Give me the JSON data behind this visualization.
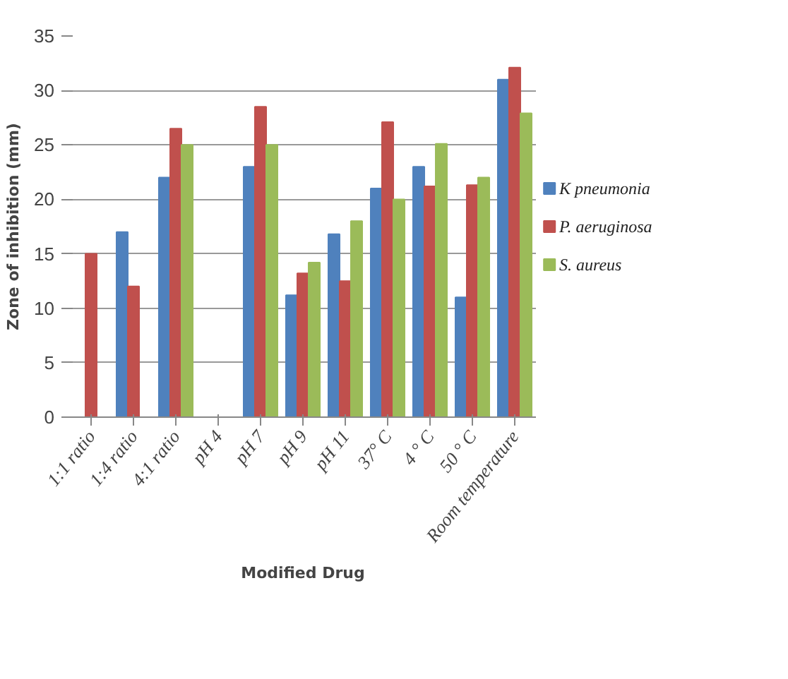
{
  "chart_data": {
    "type": "bar",
    "xlabel": "Modified Drug",
    "ylabel": "Zone of inhibition (mm)",
    "categories": [
      "1:1 ratio",
      "1:4 ratio",
      "4:1 ratio",
      "pH 4",
      "pH 7",
      "pH 9",
      "pH 11",
      "37° C",
      "4 ° C",
      "50 ° C",
      "Room temperature"
    ],
    "series": [
      {
        "name": "K pneumonia",
        "color": "#4f81bd",
        "values": [
          null,
          17,
          22,
          null,
          23,
          11.2,
          16.8,
          21,
          23,
          11,
          31
        ]
      },
      {
        "name": "P. aeruginosa",
        "color": "#c0504d",
        "values": [
          15,
          12,
          26.5,
          null,
          28.5,
          13.2,
          12.5,
          27.1,
          21.2,
          21.3,
          32.1
        ]
      },
      {
        "name": "S. aureus",
        "color": "#9bbb59",
        "values": [
          null,
          null,
          25,
          null,
          25,
          14.2,
          18,
          20,
          25.1,
          22,
          27.9
        ]
      }
    ],
    "ylim": [
      0,
      35
    ],
    "yticks": [
      0,
      5,
      10,
      15,
      20,
      25,
      30,
      35
    ],
    "grid": "y",
    "legend": "right"
  }
}
